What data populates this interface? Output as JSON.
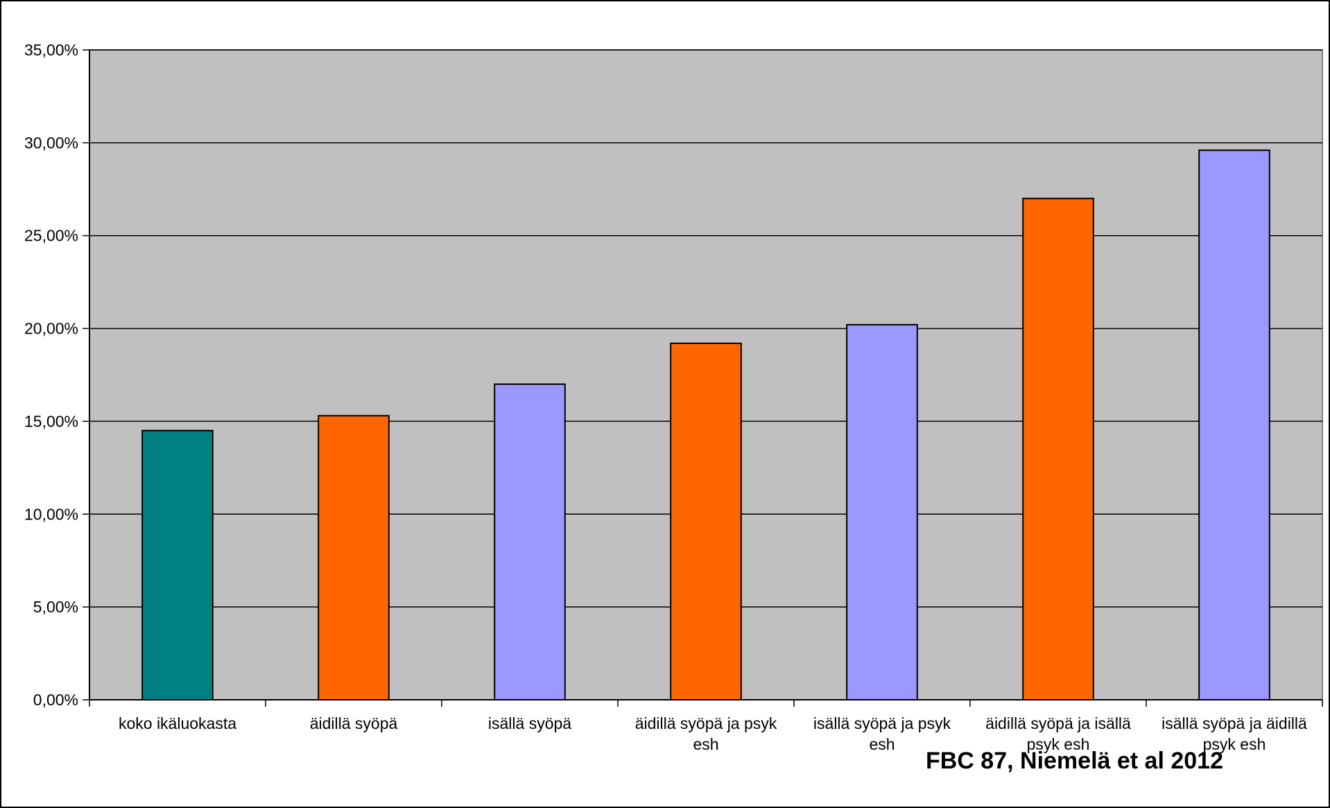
{
  "chart_data": {
    "type": "bar",
    "categories": [
      [
        "koko ikäluokasta"
      ],
      [
        "äidillä syöpä"
      ],
      [
        "isällä syöpä"
      ],
      [
        "äidillä syöpä ja psyk",
        "esh"
      ],
      [
        "isällä syöpä ja psyk",
        "esh"
      ],
      [
        "äidillä syöpä ja isällä",
        "psyk esh"
      ],
      [
        "isällä syöpä ja äidillä",
        "psyk esh"
      ]
    ],
    "values": [
      14.5,
      15.3,
      17.0,
      19.2,
      20.2,
      27.0,
      29.6
    ],
    "bar_colors": [
      "#008080",
      "#ff6600",
      "#9999ff",
      "#ff6600",
      "#9999ff",
      "#ff6600",
      "#9999ff"
    ],
    "ylim": [
      0,
      35
    ],
    "yticks": [
      "0,00%",
      "5,00%",
      "10,00%",
      "15,00%",
      "20,00%",
      "25,00%",
      "30,00%",
      "35,00%"
    ],
    "ytick_values": [
      0,
      5,
      10,
      15,
      20,
      25,
      30,
      35
    ],
    "grid": true,
    "plot_background": "#c0c0c0",
    "title": "",
    "xlabel": "",
    "ylabel": ""
  },
  "source_note": "FBC 87, Niemelä et al 2012"
}
